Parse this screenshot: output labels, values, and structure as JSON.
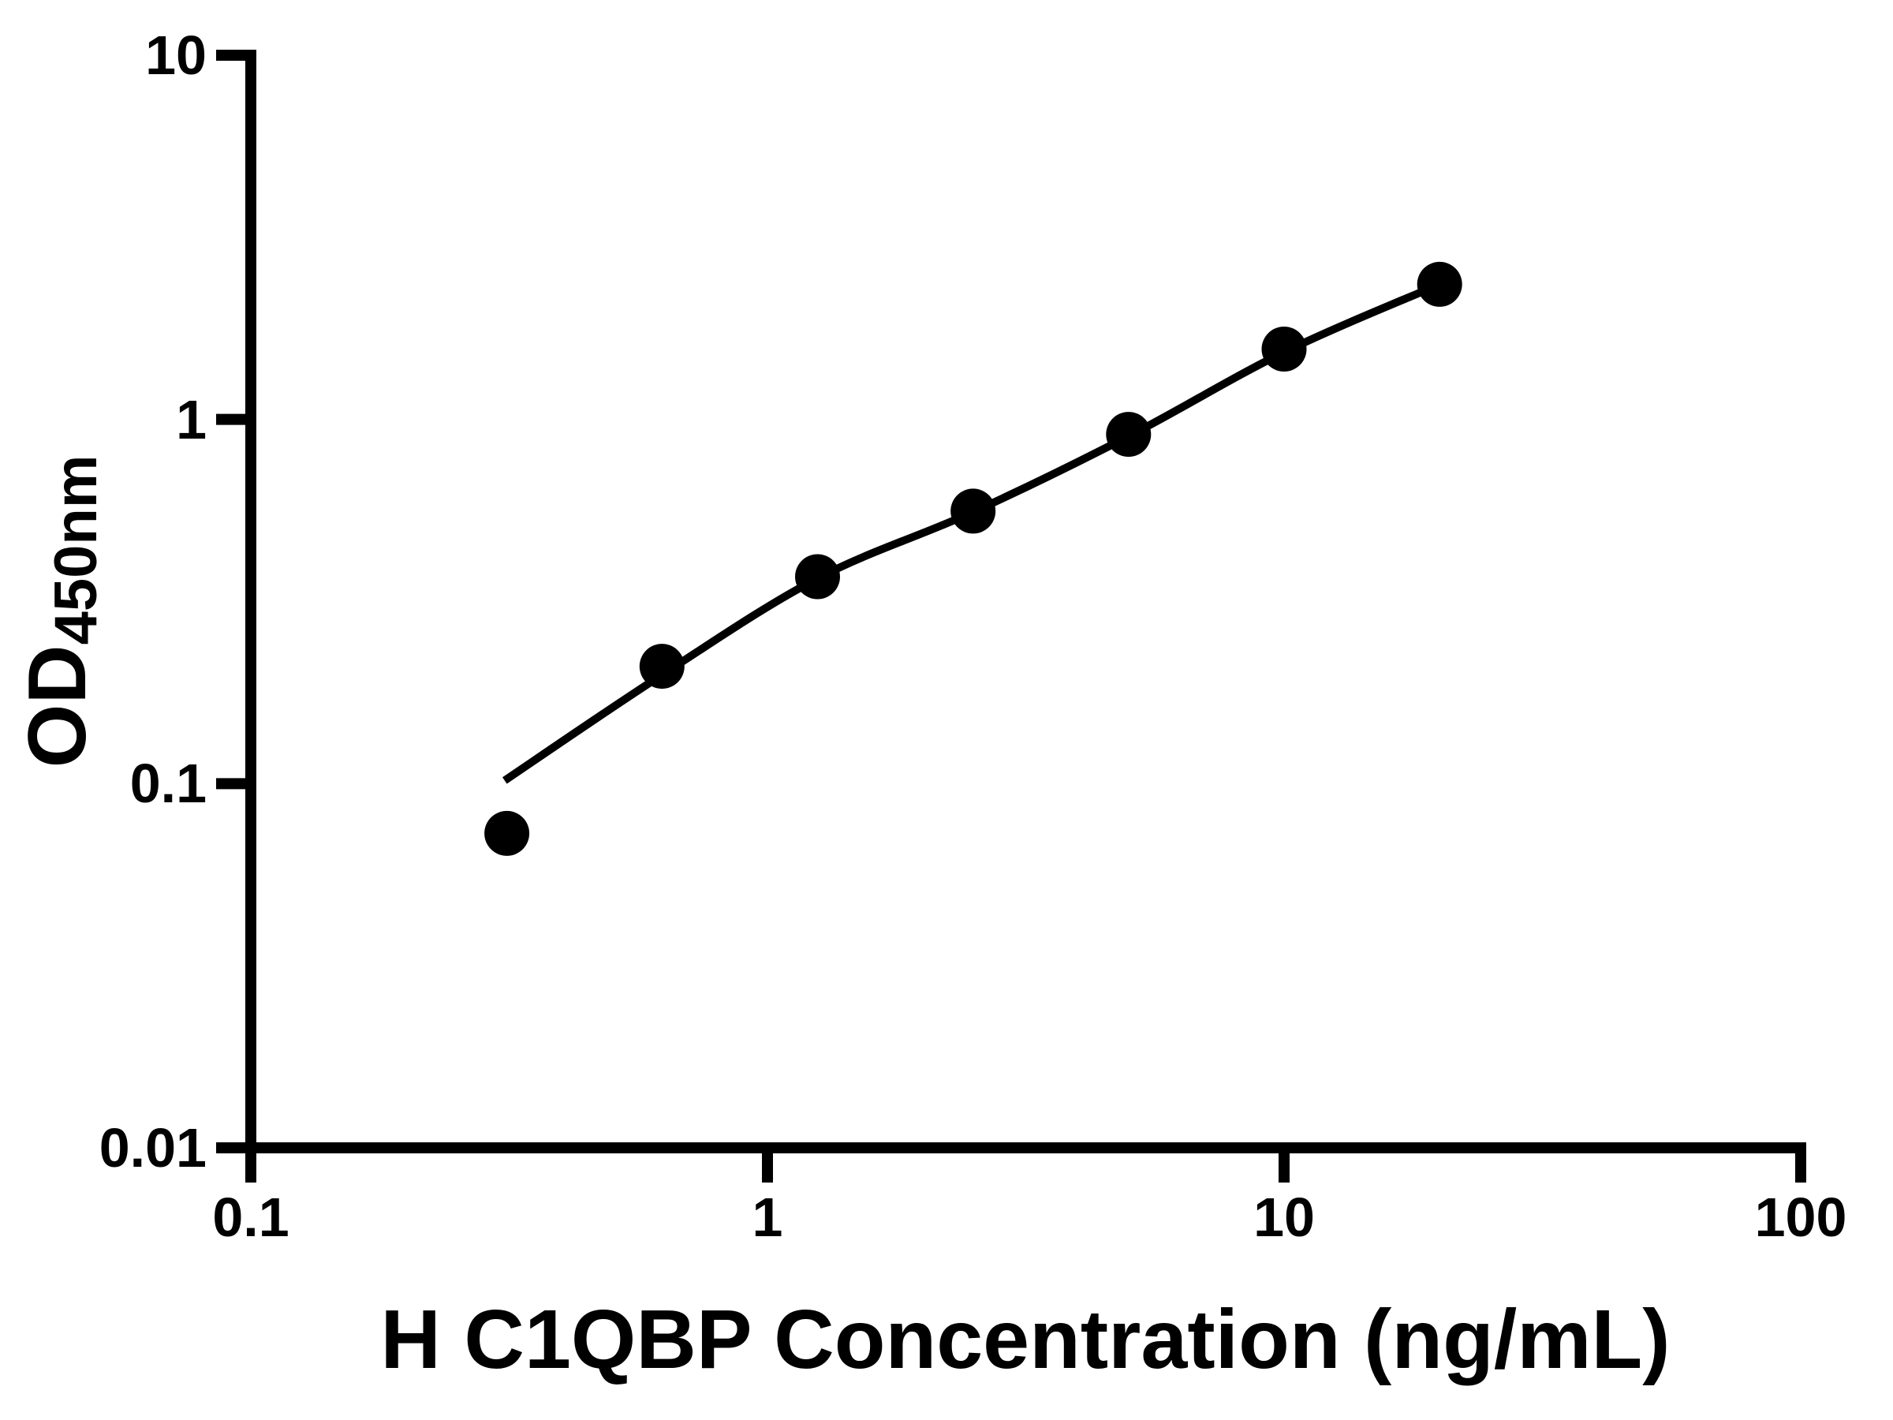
{
  "chart_data": {
    "type": "scatter",
    "title": "",
    "xlabel": "H C1QBP Concentration (ng/mL)",
    "ylabel": "OD450nm",
    "ylabel_main": "OD",
    "ylabel_sub": "450nm",
    "xscale": "log",
    "yscale": "log",
    "xlim": [
      0.1,
      100
    ],
    "ylim": [
      0.01,
      10
    ],
    "grid": false,
    "legend_position": "none",
    "marker_color": "#000000",
    "line_color": "#000000",
    "axis_color": "#000000",
    "background_color": "#ffffff",
    "x_ticks": [
      {
        "value": 0.1,
        "label": "0.1"
      },
      {
        "value": 1,
        "label": "1"
      },
      {
        "value": 10,
        "label": "10"
      },
      {
        "value": 100,
        "label": "100"
      }
    ],
    "y_ticks": [
      {
        "value": 10,
        "label": "10"
      },
      {
        "value": 1,
        "label": "1"
      },
      {
        "value": 0.1,
        "label": "0.1"
      },
      {
        "value": 0.01,
        "label": "0.01"
      }
    ],
    "series": [
      {
        "name": "standard-points",
        "render": "points",
        "x": [
          0.313,
          0.625,
          1.25,
          2.5,
          5,
          10,
          20
        ],
        "y": [
          0.073,
          0.21,
          0.37,
          0.56,
          0.91,
          1.56,
          2.35
        ]
      },
      {
        "name": "fit-curve",
        "render": "line",
        "x": [
          0.31,
          0.625,
          1.25,
          2.5,
          5,
          10,
          20
        ],
        "y": [
          0.102,
          0.199,
          0.366,
          0.557,
          0.899,
          1.53,
          2.35
        ]
      }
    ]
  }
}
